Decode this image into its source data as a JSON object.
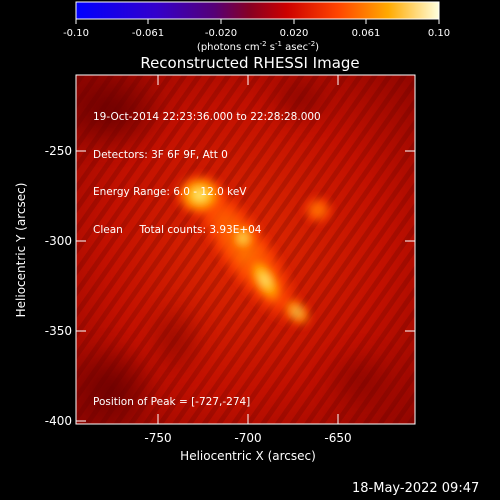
{
  "colorbar": {
    "ticks": [
      "-0.10",
      "-0.061",
      "-0.020",
      "0.020",
      "0.061",
      "0.10"
    ],
    "unit_main": "(photons cm",
    "unit_exp1": "-2",
    "unit_mid": " s",
    "unit_exp2": "-1",
    "unit_end": " asec",
    "unit_exp3": "-2",
    "unit_close": ")"
  },
  "title": "Reconstructed RHESSI Image",
  "info": {
    "line1": "19-Oct-2014 22:23:36.000 to 22:28:28.000",
    "line2": "Detectors: 3F 6F 9F, Att 0",
    "line3": "Energy Range: 6.0 - 12.0 keV",
    "line4": "Clean     Total counts: 3.93E+04"
  },
  "peak_text": "Position of Peak = [-727,-274]",
  "x_axis": {
    "label": "Heliocentric X (arcsec)",
    "ticks": [
      "-750",
      "-700",
      "-650"
    ]
  },
  "y_axis": {
    "label": "Heliocentric Y (arcsec)",
    "ticks": [
      "-250",
      "-300",
      "-350",
      "-400"
    ]
  },
  "timestamp": "18-May-2022 09:47"
}
